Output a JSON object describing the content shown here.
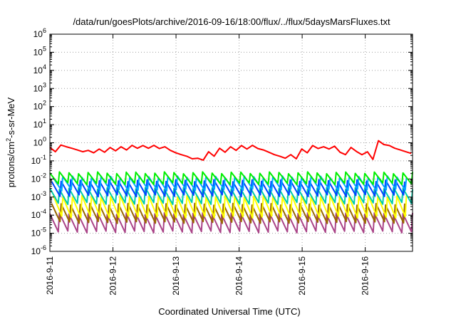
{
  "chart_data": {
    "type": "line",
    "title": "/data/run/goesPlots/archive/2016-09-16/18:00/flux/../flux/5daysMarsFluxes.txt",
    "xlabel": "Coordinated Universal Time (UTC)",
    "ylabel": "protons/cm²-s-sr-MeV",
    "ylabel_parts": {
      "pre": "protons/cm",
      "sup": "2",
      "post": "-s-sr-MeV"
    },
    "x_scale": "time",
    "y_scale": "log",
    "xlim": [
      "2016-09-11T00:00",
      "2016-09-16T18:00"
    ],
    "ylim": [
      1e-06,
      1000000.0
    ],
    "grid": true,
    "x_ticks": [
      "2016-9-11",
      "2016-9-12",
      "2016-9-13",
      "2016-9-14",
      "2016-9-15",
      "2016-9-16"
    ],
    "y_ticks": [
      {
        "value": 1e-06,
        "base": "10",
        "exp": "-6"
      },
      {
        "value": 1e-05,
        "base": "10",
        "exp": "-5"
      },
      {
        "value": 0.0001,
        "base": "10",
        "exp": "-4"
      },
      {
        "value": 0.001,
        "base": "10",
        "exp": "-3"
      },
      {
        "value": 0.01,
        "base": "10",
        "exp": "-2"
      },
      {
        "value": 0.1,
        "base": "10",
        "exp": "-1"
      },
      {
        "value": 1,
        "base": "10",
        "exp": "0"
      },
      {
        "value": 10,
        "base": "10",
        "exp": "1"
      },
      {
        "value": 100,
        "base": "10",
        "exp": "2"
      },
      {
        "value": 1000,
        "base": "10",
        "exp": "3"
      },
      {
        "value": 10000,
        "base": "10",
        "exp": "4"
      },
      {
        "value": 100000,
        "base": "10",
        "exp": "5"
      },
      {
        "value": 1000000,
        "base": "10",
        "exp": "6"
      }
    ],
    "series": [
      {
        "color": "#ff0000",
        "x": [
          "2016-09-11T00:00",
          "2016-09-11T02:05",
          "2016-09-11T04:10",
          "2016-09-11T06:15",
          "2016-09-11T08:20",
          "2016-09-11T10:25",
          "2016-09-11T12:30",
          "2016-09-11T14:35",
          "2016-09-11T16:40",
          "2016-09-11T18:45",
          "2016-09-11T20:50",
          "2016-09-11T22:55",
          "2016-09-12T01:00",
          "2016-09-12T03:05",
          "2016-09-12T05:10",
          "2016-09-12T07:15",
          "2016-09-12T09:20",
          "2016-09-12T11:25",
          "2016-09-12T13:30",
          "2016-09-12T15:35",
          "2016-09-12T17:40",
          "2016-09-12T19:45",
          "2016-09-12T21:50",
          "2016-09-12T23:55",
          "2016-09-13T02:00",
          "2016-09-13T04:05",
          "2016-09-13T06:10",
          "2016-09-13T08:15",
          "2016-09-13T10:20",
          "2016-09-13T12:25",
          "2016-09-13T14:30",
          "2016-09-13T16:35",
          "2016-09-13T18:40",
          "2016-09-13T20:45",
          "2016-09-13T22:50",
          "2016-09-14T00:55",
          "2016-09-14T03:00",
          "2016-09-14T05:05",
          "2016-09-14T07:10",
          "2016-09-14T09:15",
          "2016-09-14T11:20",
          "2016-09-14T13:25",
          "2016-09-14T15:30",
          "2016-09-14T17:35",
          "2016-09-14T19:40",
          "2016-09-14T21:45",
          "2016-09-14T23:50",
          "2016-09-15T01:55",
          "2016-09-15T04:00",
          "2016-09-15T06:05",
          "2016-09-15T08:10",
          "2016-09-15T10:15",
          "2016-09-15T12:20",
          "2016-09-15T14:25",
          "2016-09-15T16:30",
          "2016-09-15T18:35",
          "2016-09-15T20:40",
          "2016-09-15T22:45",
          "2016-09-16T00:50",
          "2016-09-16T02:55",
          "2016-09-16T05:00",
          "2016-09-16T07:05",
          "2016-09-16T09:10",
          "2016-09-16T11:15",
          "2016-09-16T13:20",
          "2016-09-16T15:25",
          "2016-09-16T17:30"
        ],
        "y": [
          0.55,
          0.32,
          0.75,
          0.6,
          0.5,
          0.4,
          0.32,
          0.38,
          0.28,
          0.45,
          0.3,
          0.55,
          0.36,
          0.6,
          0.4,
          0.72,
          0.5,
          0.7,
          0.5,
          0.72,
          0.48,
          0.6,
          0.38,
          0.28,
          0.22,
          0.18,
          0.13,
          0.14,
          0.11,
          0.32,
          0.18,
          0.5,
          0.3,
          0.6,
          0.38,
          0.7,
          0.45,
          0.72,
          0.48,
          0.4,
          0.3,
          0.22,
          0.18,
          0.14,
          0.22,
          0.13,
          0.45,
          0.28,
          0.7,
          0.48,
          0.6,
          0.45,
          0.65,
          0.3,
          0.22,
          0.55,
          0.33,
          0.22,
          0.32,
          0.12,
          1.3,
          0.8,
          0.7,
          0.5,
          0.4,
          0.32,
          0.26
        ]
      },
      {
        "color": "#00ee00",
        "peak": 0.022,
        "trough": 0.0055,
        "cycles": 38
      },
      {
        "color": "#00aaff",
        "peak": 0.013,
        "trough": 0.0025,
        "cycles": 38
      },
      {
        "color": "#0044ff",
        "peak": 0.008,
        "trough": 0.0012,
        "cycles": 38
      },
      {
        "color": "#00ccaa",
        "peak": 0.003,
        "trough": 0.00045,
        "cycles": 38
      },
      {
        "color": "#ffff00",
        "peak": 0.0011,
        "trough": 8e-05,
        "cycles": 38
      },
      {
        "color": "#996600",
        "peak": 0.0004,
        "trough": 4e-05,
        "cycles": 38
      },
      {
        "color": "#aa4488",
        "peak": 0.00012,
        "trough": 1.2e-05,
        "cycles": 38
      }
    ]
  }
}
